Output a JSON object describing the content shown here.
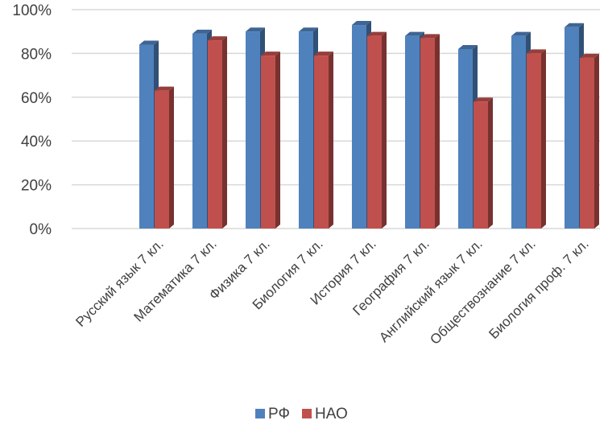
{
  "chart_data": {
    "type": "bar",
    "title": "",
    "xlabel": "",
    "ylabel": "",
    "ylim": [
      0,
      100
    ],
    "yticks": [
      "0%",
      "20%",
      "40%",
      "60%",
      "80%",
      "100%"
    ],
    "grid": true,
    "legend_position": "bottom",
    "categories": [
      "Русский язык 7 кл.",
      "Математика 7 кл.",
      "Физика 7 кл.",
      "Биология 7 кл.",
      "История 7 кл.",
      "География 7 кл.",
      "Английский язык 7 кл.",
      "Обществознание 7 кл.",
      "Биология проф. 7 кл."
    ],
    "series": [
      {
        "name": "РФ",
        "color": "#4F81BD",
        "values": [
          84,
          89,
          90,
          90,
          93,
          88,
          82,
          88,
          92
        ]
      },
      {
        "name": "НАО",
        "color": "#C0504D",
        "values": [
          63,
          86,
          79,
          79,
          88,
          87,
          58,
          80,
          78
        ]
      }
    ]
  }
}
